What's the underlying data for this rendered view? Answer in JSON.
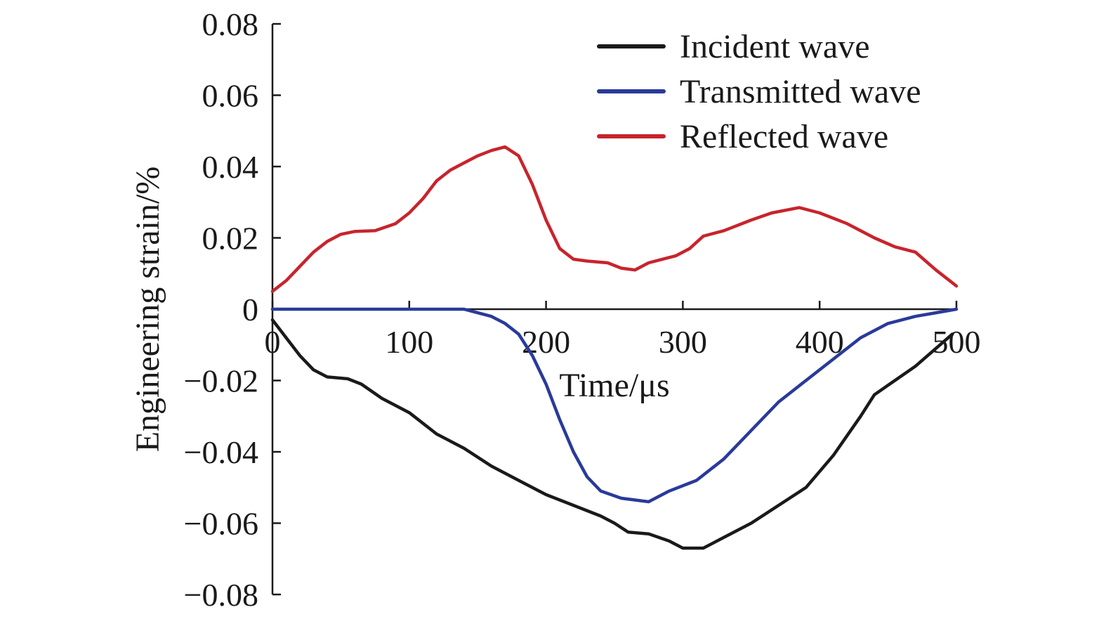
{
  "chart_data": {
    "type": "line",
    "title": "",
    "xlabel": "Time/μs",
    "ylabel": "Engineering strain/%",
    "xlim": [
      0,
      500
    ],
    "ylim": [
      -0.08,
      0.08
    ],
    "x_ticks": [
      "0",
      "100",
      "200",
      "300",
      "400",
      "500"
    ],
    "y_ticks": [
      "0.08",
      "0.06",
      "0.04",
      "0.02",
      "0",
      "−0.02",
      "−0.04",
      "−0.06",
      "−0.08"
    ],
    "grid": false,
    "legend_position": "top-right",
    "series": [
      {
        "name": "Incident wave",
        "color": "#1a1a1a",
        "points": [
          [
            0,
            -0.003
          ],
          [
            10,
            -0.008
          ],
          [
            20,
            -0.013
          ],
          [
            30,
            -0.017
          ],
          [
            40,
            -0.019
          ],
          [
            55,
            -0.0195
          ],
          [
            65,
            -0.021
          ],
          [
            80,
            -0.025
          ],
          [
            100,
            -0.029
          ],
          [
            120,
            -0.035
          ],
          [
            140,
            -0.039
          ],
          [
            160,
            -0.044
          ],
          [
            180,
            -0.048
          ],
          [
            200,
            -0.052
          ],
          [
            220,
            -0.055
          ],
          [
            240,
            -0.058
          ],
          [
            250,
            -0.06
          ],
          [
            260,
            -0.0625
          ],
          [
            275,
            -0.063
          ],
          [
            290,
            -0.065
          ],
          [
            300,
            -0.067
          ],
          [
            315,
            -0.067
          ],
          [
            330,
            -0.064
          ],
          [
            350,
            -0.06
          ],
          [
            370,
            -0.055
          ],
          [
            390,
            -0.05
          ],
          [
            410,
            -0.041
          ],
          [
            430,
            -0.03
          ],
          [
            440,
            -0.024
          ],
          [
            455,
            -0.02
          ],
          [
            470,
            -0.016
          ],
          [
            485,
            -0.011
          ],
          [
            497,
            -0.007
          ]
        ]
      },
      {
        "name": "Transmitted wave",
        "color": "#2a3a9a",
        "points": [
          [
            0,
            0
          ],
          [
            50,
            0
          ],
          [
            100,
            0
          ],
          [
            140,
            0
          ],
          [
            150,
            -0.001
          ],
          [
            160,
            -0.002
          ],
          [
            170,
            -0.004
          ],
          [
            180,
            -0.007
          ],
          [
            190,
            -0.013
          ],
          [
            200,
            -0.021
          ],
          [
            210,
            -0.031
          ],
          [
            220,
            -0.04
          ],
          [
            230,
            -0.047
          ],
          [
            240,
            -0.051
          ],
          [
            255,
            -0.053
          ],
          [
            275,
            -0.054
          ],
          [
            290,
            -0.051
          ],
          [
            310,
            -0.048
          ],
          [
            330,
            -0.042
          ],
          [
            350,
            -0.034
          ],
          [
            370,
            -0.026
          ],
          [
            390,
            -0.02
          ],
          [
            410,
            -0.014
          ],
          [
            430,
            -0.008
          ],
          [
            450,
            -0.004
          ],
          [
            470,
            -0.002
          ],
          [
            485,
            -0.001
          ],
          [
            500,
            0
          ]
        ]
      },
      {
        "name": "Reflected wave",
        "color": "#c8242c",
        "points": [
          [
            0,
            0.005
          ],
          [
            10,
            0.008
          ],
          [
            20,
            0.012
          ],
          [
            30,
            0.016
          ],
          [
            40,
            0.019
          ],
          [
            50,
            0.021
          ],
          [
            60,
            0.0218
          ],
          [
            75,
            0.022
          ],
          [
            90,
            0.024
          ],
          [
            100,
            0.027
          ],
          [
            110,
            0.031
          ],
          [
            120,
            0.036
          ],
          [
            130,
            0.039
          ],
          [
            140,
            0.041
          ],
          [
            150,
            0.043
          ],
          [
            160,
            0.0445
          ],
          [
            170,
            0.0455
          ],
          [
            180,
            0.043
          ],
          [
            190,
            0.035
          ],
          [
            200,
            0.025
          ],
          [
            210,
            0.017
          ],
          [
            220,
            0.014
          ],
          [
            230,
            0.0135
          ],
          [
            245,
            0.013
          ],
          [
            255,
            0.0115
          ],
          [
            265,
            0.011
          ],
          [
            275,
            0.013
          ],
          [
            285,
            0.014
          ],
          [
            295,
            0.015
          ],
          [
            305,
            0.017
          ],
          [
            315,
            0.0205
          ],
          [
            330,
            0.022
          ],
          [
            350,
            0.025
          ],
          [
            365,
            0.027
          ],
          [
            385,
            0.0285
          ],
          [
            400,
            0.027
          ],
          [
            420,
            0.024
          ],
          [
            440,
            0.02
          ],
          [
            455,
            0.0175
          ],
          [
            470,
            0.016
          ],
          [
            485,
            0.011
          ],
          [
            500,
            0.0065
          ]
        ]
      }
    ]
  }
}
